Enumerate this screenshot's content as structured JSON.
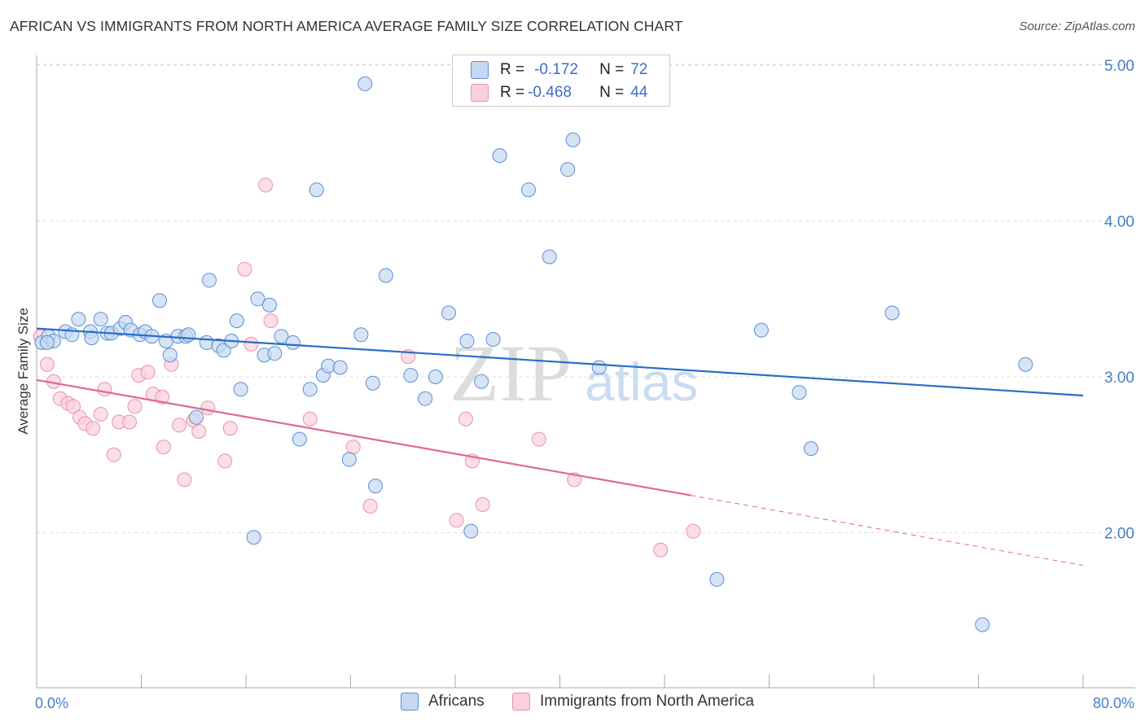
{
  "title": "AFRICAN VS IMMIGRANTS FROM NORTH AMERICA AVERAGE FAMILY SIZE CORRELATION CHART",
  "source": "Source: ZipAtlas.com",
  "watermark": {
    "zip": "ZIP",
    "atlas": "atlas"
  },
  "legend": {
    "r_label": "R =",
    "n_label": "N =",
    "rows": [
      {
        "r": "-0.172",
        "n": "72"
      },
      {
        "r": "-0.468",
        "n": "44"
      }
    ]
  },
  "colors": {
    "blue_fill": "#c5d9f1",
    "blue_stroke": "#5b8fd4",
    "blue_line": "#2b6cc8",
    "pink_fill": "#f9d0dd",
    "pink_stroke": "#e892ad",
    "pink_line": "#e0688f",
    "tick_text": "#4a7cc9",
    "grid": "#dddddd"
  },
  "chart_data": {
    "type": "scatter",
    "title": "AFRICAN VS IMMIGRANTS FROM NORTH AMERICA AVERAGE FAMILY SIZE CORRELATION CHART",
    "xlabel": "",
    "ylabel": "Average Family Size",
    "xlim": [
      0,
      80
    ],
    "ylim": [
      1.0,
      5.2
    ],
    "x_tick_labels": [
      "0.0%",
      "80.0%"
    ],
    "y_ticks": [
      2.0,
      3.0,
      4.0,
      5.0
    ],
    "y_tick_labels": [
      "2.00",
      "3.00",
      "4.00",
      "5.00"
    ],
    "grid": true,
    "legend_position": "top-center",
    "series": [
      {
        "name": "Africans",
        "r": -0.172,
        "n": 72,
        "trend": {
          "x": [
            0,
            80
          ],
          "y": [
            3.31,
            2.88
          ]
        },
        "points": [
          [
            0.4,
            3.22
          ],
          [
            0.9,
            3.26
          ],
          [
            1.3,
            3.23
          ],
          [
            2.2,
            3.29
          ],
          [
            2.7,
            3.27
          ],
          [
            3.2,
            3.37
          ],
          [
            4.1,
            3.29
          ],
          [
            4.2,
            3.25
          ],
          [
            4.9,
            3.37
          ],
          [
            5.4,
            3.28
          ],
          [
            5.7,
            3.28
          ],
          [
            6.4,
            3.31
          ],
          [
            6.8,
            3.35
          ],
          [
            7.2,
            3.3
          ],
          [
            7.9,
            3.27
          ],
          [
            8.3,
            3.29
          ],
          [
            8.8,
            3.26
          ],
          [
            9.4,
            3.49
          ],
          [
            9.9,
            3.23
          ],
          [
            10.2,
            3.14
          ],
          [
            10.8,
            3.26
          ],
          [
            11.4,
            3.26
          ],
          [
            11.6,
            3.27
          ],
          [
            12.2,
            2.74
          ],
          [
            13.0,
            3.22
          ],
          [
            13.2,
            3.62
          ],
          [
            13.9,
            3.2
          ],
          [
            14.3,
            3.17
          ],
          [
            14.9,
            3.23
          ],
          [
            15.3,
            3.36
          ],
          [
            15.6,
            2.92
          ],
          [
            16.6,
            1.97
          ],
          [
            16.9,
            3.5
          ],
          [
            17.4,
            3.14
          ],
          [
            17.8,
            3.46
          ],
          [
            18.2,
            3.15
          ],
          [
            18.7,
            3.26
          ],
          [
            19.6,
            3.22
          ],
          [
            20.1,
            2.6
          ],
          [
            20.9,
            2.92
          ],
          [
            21.4,
            4.2
          ],
          [
            21.9,
            3.01
          ],
          [
            22.3,
            3.07
          ],
          [
            23.2,
            3.06
          ],
          [
            23.9,
            2.47
          ],
          [
            24.8,
            3.27
          ],
          [
            25.1,
            4.88
          ],
          [
            25.7,
            2.96
          ],
          [
            25.9,
            2.3
          ],
          [
            26.7,
            3.65
          ],
          [
            28.6,
            3.01
          ],
          [
            29.7,
            2.86
          ],
          [
            30.5,
            3.0
          ],
          [
            31.5,
            3.41
          ],
          [
            32.9,
            3.23
          ],
          [
            33.2,
            2.01
          ],
          [
            34.0,
            2.97
          ],
          [
            34.9,
            3.24
          ],
          [
            35.4,
            4.42
          ],
          [
            37.6,
            4.2
          ],
          [
            39.2,
            3.77
          ],
          [
            40.6,
            4.33
          ],
          [
            41.0,
            4.52
          ],
          [
            43.0,
            3.06
          ],
          [
            52.0,
            1.7
          ],
          [
            55.4,
            3.3
          ],
          [
            58.3,
            2.9
          ],
          [
            59.2,
            2.54
          ],
          [
            65.4,
            3.41
          ],
          [
            75.6,
            3.08
          ],
          [
            72.3,
            1.41
          ],
          [
            0.8,
            3.22
          ]
        ]
      },
      {
        "name": "Immigrants from North America",
        "r": -0.468,
        "n": 44,
        "trend": {
          "x": [
            0,
            50
          ],
          "y": [
            2.98,
            2.24
          ]
        },
        "trend_dashed": {
          "x": [
            50,
            80
          ],
          "y": [
            2.24,
            1.79
          ]
        },
        "points": [
          [
            0.3,
            3.26
          ],
          [
            0.8,
            3.08
          ],
          [
            1.3,
            2.97
          ],
          [
            1.8,
            2.86
          ],
          [
            2.4,
            2.83
          ],
          [
            2.8,
            2.81
          ],
          [
            3.3,
            2.74
          ],
          [
            3.7,
            2.7
          ],
          [
            4.3,
            2.67
          ],
          [
            4.9,
            2.76
          ],
          [
            5.2,
            2.92
          ],
          [
            5.9,
            2.5
          ],
          [
            6.3,
            2.71
          ],
          [
            7.1,
            2.71
          ],
          [
            7.5,
            2.81
          ],
          [
            7.8,
            3.01
          ],
          [
            8.5,
            3.03
          ],
          [
            8.9,
            2.89
          ],
          [
            9.6,
            2.87
          ],
          [
            9.7,
            2.55
          ],
          [
            10.3,
            3.08
          ],
          [
            10.9,
            2.69
          ],
          [
            11.3,
            2.34
          ],
          [
            12.0,
            2.72
          ],
          [
            12.4,
            2.65
          ],
          [
            13.1,
            2.8
          ],
          [
            14.4,
            2.46
          ],
          [
            14.8,
            2.67
          ],
          [
            16.4,
            3.21
          ],
          [
            15.9,
            3.69
          ],
          [
            17.5,
            4.23
          ],
          [
            17.9,
            3.36
          ],
          [
            20.9,
            2.73
          ],
          [
            24.2,
            2.55
          ],
          [
            25.5,
            2.17
          ],
          [
            28.4,
            3.13
          ],
          [
            32.1,
            2.08
          ],
          [
            32.8,
            2.73
          ],
          [
            33.3,
            2.46
          ],
          [
            34.1,
            2.18
          ],
          [
            38.4,
            2.6
          ],
          [
            41.1,
            2.34
          ],
          [
            47.7,
            1.89
          ],
          [
            50.2,
            2.01
          ]
        ]
      }
    ]
  }
}
